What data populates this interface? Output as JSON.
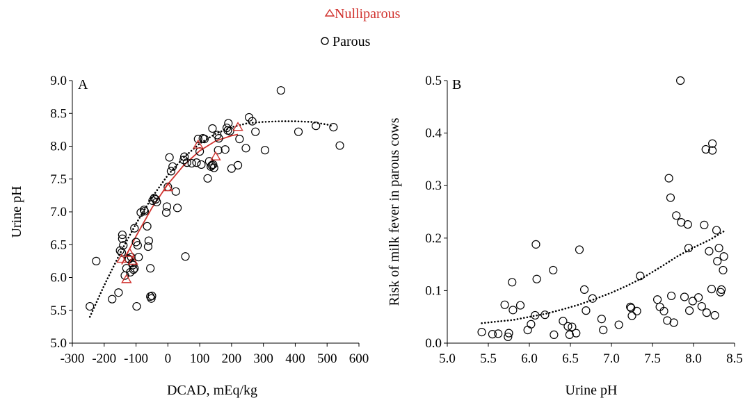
{
  "legend": [
    {
      "label": "Nulliparous",
      "marker": "triangle",
      "color": "#d0312d"
    },
    {
      "label": "Parous",
      "marker": "circle",
      "color": "#000000"
    }
  ],
  "chart_data": [
    {
      "type": "scatter",
      "panel_label": "A",
      "xlabel": "DCAD, mEq/kg",
      "ylabel": "Urine pH",
      "xlim": [
        -300,
        600
      ],
      "ylim": [
        5.0,
        9.0
      ],
      "xticks": [
        -300,
        -200,
        -100,
        0,
        100,
        200,
        300,
        400,
        500,
        600
      ],
      "yticks": [
        "5.0",
        "5.5",
        "6.0",
        "6.5",
        "7.0",
        "7.5",
        "8.0",
        "8.5",
        "9.0"
      ],
      "series": [
        {
          "name": "Parous",
          "marker": "circle",
          "color": "#000000",
          "points": [
            [
              -245,
              5.56
            ],
            [
              -225,
              6.25
            ],
            [
              -175,
              5.67
            ],
            [
              -155,
              5.77
            ],
            [
              -150,
              6.41
            ],
            [
              -145,
              6.38
            ],
            [
              -143,
              6.59
            ],
            [
              -143,
              6.65
            ],
            [
              -140,
              6.49
            ],
            [
              -135,
              6.03
            ],
            [
              -130,
              6.14
            ],
            [
              -125,
              6.29
            ],
            [
              -122,
              6.28
            ],
            [
              -118,
              6.08
            ],
            [
              -115,
              6.31
            ],
            [
              -112,
              6.22
            ],
            [
              -110,
              6.19
            ],
            [
              -108,
              6.12
            ],
            [
              -105,
              6.14
            ],
            [
              -105,
              6.75
            ],
            [
              -100,
              6.54
            ],
            [
              -98,
              5.56
            ],
            [
              -95,
              6.49
            ],
            [
              -92,
              6.31
            ],
            [
              -85,
              6.99
            ],
            [
              -75,
              7.03
            ],
            [
              -73,
              7.01
            ],
            [
              -65,
              6.78
            ],
            [
              -62,
              6.47
            ],
            [
              -60,
              6.56
            ],
            [
              -55,
              6.14
            ],
            [
              -55,
              5.71
            ],
            [
              -52,
              5.68
            ],
            [
              -50,
              5.72
            ],
            [
              -48,
              7.17
            ],
            [
              -43,
              7.21
            ],
            [
              -38,
              7.19
            ],
            [
              -35,
              7.15
            ],
            [
              -5,
              6.99
            ],
            [
              -3,
              7.08
            ],
            [
              0,
              7.38
            ],
            [
              5,
              7.83
            ],
            [
              10,
              7.62
            ],
            [
              15,
              7.69
            ],
            [
              25,
              7.31
            ],
            [
              30,
              7.06
            ],
            [
              50,
              7.79
            ],
            [
              52,
              7.84
            ],
            [
              55,
              6.32
            ],
            [
              60,
              7.75
            ],
            [
              75,
              7.74
            ],
            [
              90,
              7.75
            ],
            [
              95,
              8.11
            ],
            [
              100,
              7.92
            ],
            [
              105,
              7.72
            ],
            [
              110,
              8.12
            ],
            [
              115,
              8.11
            ],
            [
              125,
              7.51
            ],
            [
              130,
              7.77
            ],
            [
              135,
              7.69
            ],
            [
              138,
              7.71
            ],
            [
              140,
              8.27
            ],
            [
              142,
              7.72
            ],
            [
              145,
              7.67
            ],
            [
              155,
              8.17
            ],
            [
              158,
              7.94
            ],
            [
              160,
              8.12
            ],
            [
              180,
              7.95
            ],
            [
              185,
              8.28
            ],
            [
              188,
              8.24
            ],
            [
              190,
              8.35
            ],
            [
              195,
              8.23
            ],
            [
              200,
              7.66
            ],
            [
              220,
              7.71
            ],
            [
              225,
              8.11
            ],
            [
              245,
              7.97
            ],
            [
              255,
              8.44
            ],
            [
              265,
              8.38
            ],
            [
              275,
              8.22
            ],
            [
              305,
              7.94
            ],
            [
              355,
              8.85
            ],
            [
              410,
              8.22
            ],
            [
              465,
              8.31
            ],
            [
              520,
              8.29
            ],
            [
              540,
              8.01
            ]
          ]
        },
        {
          "name": "Nulliparous",
          "marker": "triangle",
          "color": "#d0312d",
          "points": [
            [
              -145,
              6.28
            ],
            [
              -130,
              5.97
            ],
            [
              -120,
              6.37
            ],
            [
              -110,
              6.25
            ],
            [
              0,
              7.37
            ],
            [
              95,
              8.02
            ],
            [
              150,
              7.84
            ],
            [
              220,
              8.29
            ]
          ]
        }
      ],
      "fits": [
        {
          "series": "Parous",
          "style": "dotted",
          "color": "#000000",
          "x_range": [
            -245,
            520
          ],
          "points": [
            [
              -245,
              5.4
            ],
            [
              -200,
              5.88
            ],
            [
              -150,
              6.37
            ],
            [
              -100,
              6.82
            ],
            [
              -50,
              7.22
            ],
            [
              0,
              7.56
            ],
            [
              50,
              7.83
            ],
            [
              100,
              8.04
            ],
            [
              150,
              8.19
            ],
            [
              200,
              8.29
            ],
            [
              250,
              8.35
            ],
            [
              300,
              8.37
            ],
            [
              350,
              8.38
            ],
            [
              400,
              8.38
            ],
            [
              450,
              8.37
            ],
            [
              500,
              8.33
            ],
            [
              520,
              8.3
            ]
          ]
        },
        {
          "series": "Nulliparous",
          "style": "solid",
          "color": "#d0312d",
          "x_range": [
            -145,
            220
          ],
          "points": [
            [
              -145,
              6.2
            ],
            [
              -100,
              6.63
            ],
            [
              -50,
              7.06
            ],
            [
              0,
              7.42
            ],
            [
              50,
              7.71
            ],
            [
              100,
              7.93
            ],
            [
              150,
              8.08
            ],
            [
              200,
              8.16
            ],
            [
              220,
              8.18
            ]
          ]
        }
      ]
    },
    {
      "type": "scatter",
      "panel_label": "B",
      "xlabel": "Urine pH",
      "ylabel": "Risk of milk fever in parous cows",
      "xlim": [
        5.0,
        8.5
      ],
      "ylim": [
        0.0,
        0.5
      ],
      "xticks": [
        "5.0",
        "5.5",
        "6.0",
        "6.5",
        "7.0",
        "7.5",
        "8.0",
        "8.5"
      ],
      "yticks": [
        "0.0",
        "0.1",
        "0.2",
        "0.3",
        "0.4",
        "0.5"
      ],
      "series": [
        {
          "name": "Parous",
          "marker": "circle",
          "color": "#000000",
          "points": [
            [
              5.42,
              0.021
            ],
            [
              5.55,
              0.017
            ],
            [
              5.62,
              0.018
            ],
            [
              5.7,
              0.073
            ],
            [
              5.74,
              0.012
            ],
            [
              5.75,
              0.019
            ],
            [
              5.79,
              0.116
            ],
            [
              5.8,
              0.063
            ],
            [
              5.89,
              0.072
            ],
            [
              5.98,
              0.025
            ],
            [
              6.02,
              0.036
            ],
            [
              6.07,
              0.053
            ],
            [
              6.08,
              0.188
            ],
            [
              6.09,
              0.122
            ],
            [
              6.19,
              0.054
            ],
            [
              6.29,
              0.139
            ],
            [
              6.3,
              0.016
            ],
            [
              6.41,
              0.042
            ],
            [
              6.47,
              0.032
            ],
            [
              6.49,
              0.016
            ],
            [
              6.52,
              0.031
            ],
            [
              6.57,
              0.019
            ],
            [
              6.61,
              0.178
            ],
            [
              6.67,
              0.102
            ],
            [
              6.69,
              0.062
            ],
            [
              6.77,
              0.085
            ],
            [
              6.88,
              0.046
            ],
            [
              6.9,
              0.025
            ],
            [
              7.09,
              0.035
            ],
            [
              7.23,
              0.069
            ],
            [
              7.24,
              0.067
            ],
            [
              7.25,
              0.052
            ],
            [
              7.31,
              0.061
            ],
            [
              7.35,
              0.128
            ],
            [
              7.56,
              0.083
            ],
            [
              7.59,
              0.069
            ],
            [
              7.64,
              0.061
            ],
            [
              7.68,
              0.043
            ],
            [
              7.7,
              0.314
            ],
            [
              7.72,
              0.277
            ],
            [
              7.73,
              0.09
            ],
            [
              7.76,
              0.039
            ],
            [
              7.79,
              0.243
            ],
            [
              7.84,
              0.5
            ],
            [
              7.85,
              0.23
            ],
            [
              7.89,
              0.088
            ],
            [
              7.93,
              0.226
            ],
            [
              7.94,
              0.181
            ],
            [
              7.95,
              0.062
            ],
            [
              7.99,
              0.08
            ],
            [
              8.06,
              0.087
            ],
            [
              8.1,
              0.07
            ],
            [
              8.13,
              0.225
            ],
            [
              8.15,
              0.369
            ],
            [
              8.16,
              0.058
            ],
            [
              8.19,
              0.175
            ],
            [
              8.22,
              0.103
            ],
            [
              8.23,
              0.38
            ],
            [
              8.23,
              0.367
            ],
            [
              8.26,
              0.053
            ],
            [
              8.28,
              0.215
            ],
            [
              8.29,
              0.156
            ],
            [
              8.31,
              0.181
            ],
            [
              8.33,
              0.097
            ],
            [
              8.34,
              0.102
            ],
            [
              8.36,
              0.139
            ],
            [
              8.37,
              0.165
            ]
          ]
        }
      ],
      "fits": [
        {
          "series": "Parous",
          "style": "dotted",
          "color": "#000000",
          "x_range": [
            5.42,
            8.37
          ],
          "points": [
            [
              5.42,
              0.038
            ],
            [
              5.6,
              0.041
            ],
            [
              5.8,
              0.044
            ],
            [
              6.0,
              0.05
            ],
            [
              6.2,
              0.056
            ],
            [
              6.4,
              0.064
            ],
            [
              6.6,
              0.073
            ],
            [
              6.8,
              0.084
            ],
            [
              7.0,
              0.096
            ],
            [
              7.2,
              0.11
            ],
            [
              7.4,
              0.126
            ],
            [
              7.6,
              0.145
            ],
            [
              7.8,
              0.165
            ],
            [
              8.0,
              0.182
            ],
            [
              8.2,
              0.197
            ],
            [
              8.37,
              0.213
            ]
          ]
        }
      ]
    }
  ]
}
